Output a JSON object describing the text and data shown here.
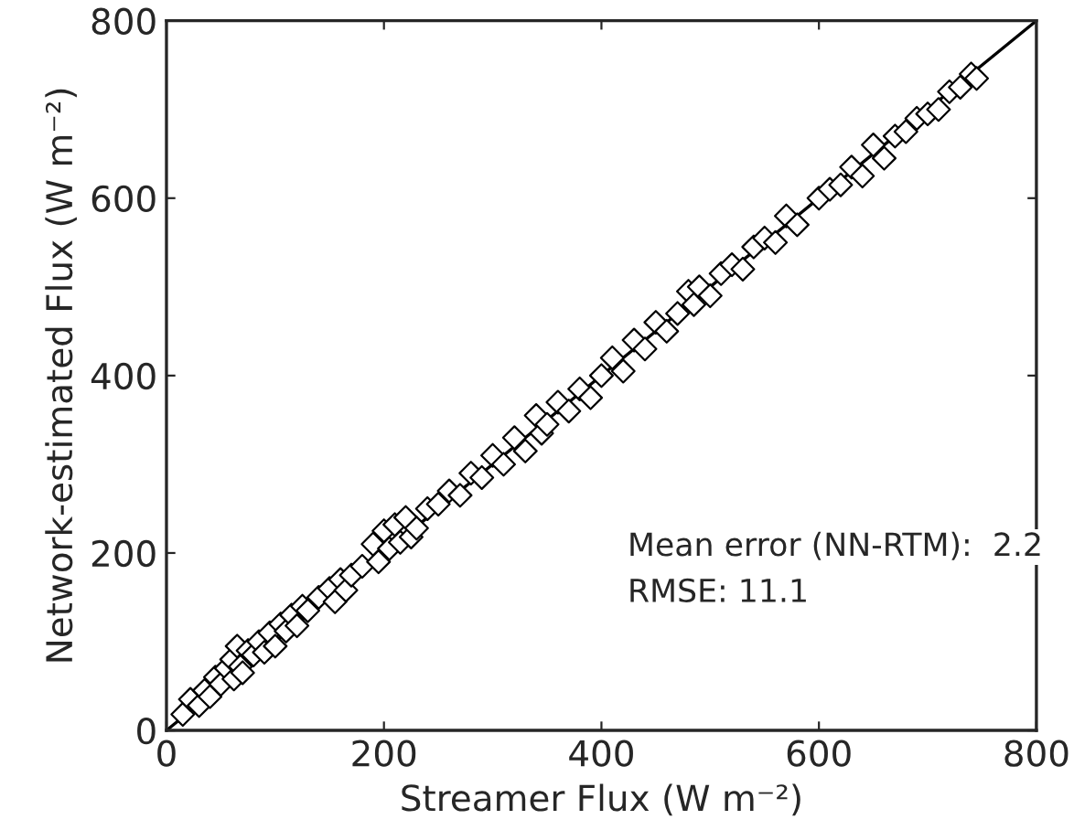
{
  "chart_data": {
    "type": "scatter",
    "xlabel": "Streamer Flux (W m⁻²)",
    "ylabel": "Network-estimated Flux (W m⁻²)",
    "xlim": [
      0,
      800
    ],
    "ylim": [
      0,
      800
    ],
    "xticks": [
      0,
      200,
      400,
      600,
      800
    ],
    "yticks": [
      0,
      200,
      400,
      600,
      800
    ],
    "grid": false,
    "marker": "diamond",
    "annotations": [
      "Mean error (NN-RTM):  2.2",
      "RMSE: 11.1"
    ],
    "series": [
      {
        "color": "#000000",
        "x": [
          15,
          22,
          30,
          35,
          40,
          45,
          50,
          55,
          60,
          62,
          65,
          68,
          70,
          75,
          80,
          85,
          90,
          95,
          100,
          105,
          110,
          115,
          120,
          125,
          130,
          140,
          150,
          155,
          160,
          165,
          170,
          180,
          190,
          195,
          200,
          205,
          210,
          215,
          220,
          225,
          230,
          240,
          250,
          260,
          270,
          280,
          290,
          300,
          310,
          320,
          330,
          340,
          345,
          350,
          360,
          370,
          380,
          390,
          400,
          410,
          420,
          430,
          440,
          450,
          460,
          470,
          480,
          485,
          490,
          500,
          510,
          520,
          530,
          540,
          550,
          560,
          570,
          580,
          600,
          610,
          620,
          630,
          640,
          650,
          660,
          670,
          680,
          690,
          700,
          710,
          720,
          730,
          740,
          745
        ],
        "values": [
          18,
          35,
          28,
          45,
          38,
          60,
          52,
          70,
          80,
          58,
          95,
          72,
          65,
          90,
          85,
          100,
          88,
          110,
          95,
          120,
          112,
          130,
          118,
          140,
          135,
          150,
          160,
          145,
          170,
          158,
          175,
          185,
          210,
          190,
          225,
          205,
          232,
          212,
          240,
          218,
          228,
          250,
          255,
          270,
          265,
          290,
          285,
          310,
          300,
          330,
          315,
          355,
          335,
          345,
          370,
          360,
          385,
          375,
          400,
          420,
          405,
          440,
          430,
          460,
          450,
          470,
          495,
          480,
          500,
          490,
          515,
          525,
          520,
          545,
          555,
          550,
          580,
          570,
          600,
          610,
          615,
          635,
          625,
          660,
          645,
          670,
          675,
          690,
          695,
          700,
          720,
          725,
          740,
          735
        ]
      },
      {
        "type": "line",
        "marker": "none",
        "color": "#000000",
        "x": [
          0,
          800
        ],
        "values": [
          0,
          800
        ]
      }
    ]
  }
}
